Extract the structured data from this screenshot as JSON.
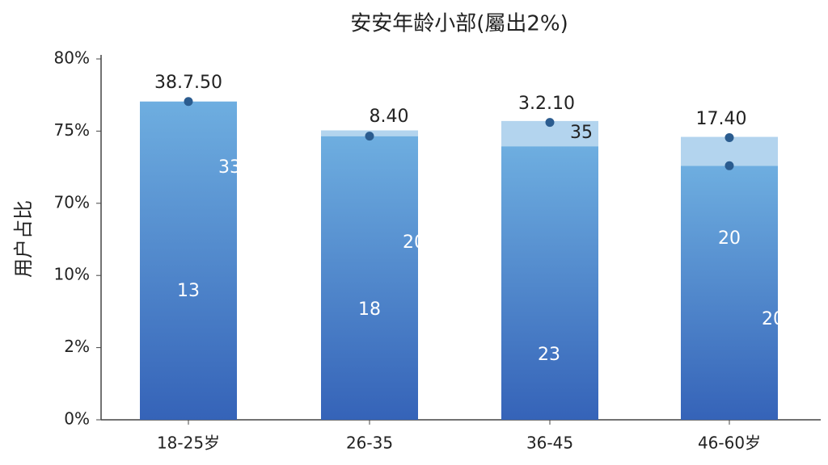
{
  "chart_data": {
    "type": "stacked-bar",
    "title": "安安年龄小部(屬出2%)",
    "y_label": "用户占比",
    "categories": [
      "18-25岁",
      "26-35",
      "36-45",
      "46-60岁"
    ],
    "ylim": [
      0,
      5
    ],
    "yticks": [
      {
        "value": 0,
        "label": "0%"
      },
      {
        "value": 1,
        "label": "2%"
      },
      {
        "value": 2,
        "label": "10%"
      },
      {
        "value": 3,
        "label": "70%"
      },
      {
        "value": 4,
        "label": "75%"
      },
      {
        "value": 5,
        "label": "80%"
      }
    ],
    "series": [
      {
        "color": "#3f76c4",
        "values": [
          4.41,
          3.93,
          3.79,
          3.52
        ]
      },
      {
        "color": "#b3d4ee",
        "values": [
          0,
          0.08,
          0.35,
          0.4
        ]
      }
    ],
    "markers": [
      {
        "color": "#2b5c8f",
        "values": [
          4.41,
          3.93,
          4.12,
          3.91
        ]
      },
      {
        "color": "#2b5c8f",
        "values": [
          null,
          null,
          null,
          3.52
        ]
      }
    ],
    "annotations": [
      [
        "38.7.50",
        "33",
        "13"
      ],
      [
        "8.40",
        "20",
        "18"
      ],
      [
        "3.2.10",
        "35",
        "23"
      ],
      [
        "17.40",
        "20",
        "20"
      ]
    ]
  }
}
